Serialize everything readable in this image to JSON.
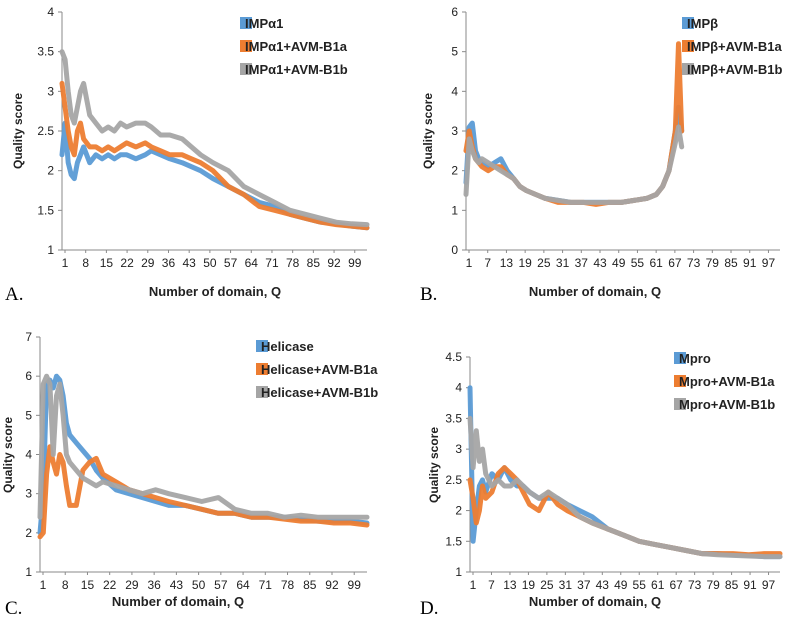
{
  "colors": {
    "series1": "#5B9BD5",
    "series2": "#ED7D31",
    "series3": "#A5A5A5"
  },
  "chart_data": [
    {
      "type": "line",
      "panel_label": "A.",
      "xlabel": "Number of domain, Q",
      "ylabel": "Quality score",
      "ylim": [
        1,
        4
      ],
      "yticks": [
        "1",
        "1.5",
        "2",
        "2.5",
        "3",
        "3.5",
        "4"
      ],
      "xticks": [
        "1",
        "8",
        "15",
        "22",
        "29",
        "36",
        "43",
        "50",
        "57",
        "64",
        "71",
        "78",
        "85",
        "92",
        "99"
      ],
      "xlim": [
        1,
        100
      ],
      "series": [
        {
          "name": "IMPα1",
          "x": [
            1,
            2,
            3,
            4,
            5,
            6,
            7,
            8,
            10,
            12,
            14,
            16,
            18,
            20,
            22,
            25,
            28,
            30,
            33,
            36,
            40,
            43,
            46,
            50,
            55,
            60,
            65,
            70,
            75,
            80,
            85,
            90,
            95,
            100
          ],
          "values": [
            2.2,
            2.6,
            2.1,
            1.95,
            1.9,
            2.1,
            2.2,
            2.3,
            2.1,
            2.2,
            2.15,
            2.2,
            2.15,
            2.2,
            2.2,
            2.15,
            2.2,
            2.25,
            2.2,
            2.15,
            2.1,
            2.05,
            2.0,
            1.9,
            1.8,
            1.7,
            1.6,
            1.55,
            1.45,
            1.4,
            1.35,
            1.33,
            1.3,
            1.28
          ]
        },
        {
          "name": "IMPα1+AVM-B1a",
          "x": [
            1,
            2,
            3,
            4,
            5,
            6,
            7,
            8,
            10,
            12,
            14,
            16,
            18,
            20,
            22,
            25,
            28,
            30,
            33,
            36,
            40,
            43,
            46,
            50,
            55,
            60,
            65,
            70,
            75,
            80,
            85,
            90,
            95,
            100
          ],
          "values": [
            3.1,
            2.8,
            2.5,
            2.3,
            2.2,
            2.5,
            2.6,
            2.4,
            2.3,
            2.3,
            2.25,
            2.3,
            2.25,
            2.3,
            2.35,
            2.3,
            2.35,
            2.3,
            2.25,
            2.2,
            2.2,
            2.15,
            2.1,
            2.0,
            1.8,
            1.7,
            1.55,
            1.5,
            1.45,
            1.4,
            1.35,
            1.32,
            1.3,
            1.28
          ]
        },
        {
          "name": "IMPα1+AVM-B1b",
          "x": [
            1,
            2,
            3,
            4,
            5,
            6,
            7,
            8,
            10,
            12,
            14,
            16,
            18,
            20,
            22,
            25,
            28,
            30,
            33,
            36,
            40,
            43,
            46,
            50,
            55,
            60,
            65,
            70,
            75,
            80,
            85,
            90,
            95,
            100
          ],
          "values": [
            3.5,
            3.4,
            3.0,
            2.7,
            2.6,
            2.8,
            3.0,
            3.1,
            2.7,
            2.6,
            2.5,
            2.55,
            2.5,
            2.6,
            2.55,
            2.6,
            2.6,
            2.55,
            2.45,
            2.45,
            2.4,
            2.3,
            2.2,
            2.1,
            2.0,
            1.8,
            1.7,
            1.6,
            1.5,
            1.45,
            1.4,
            1.35,
            1.33,
            1.32
          ]
        }
      ]
    },
    {
      "type": "line",
      "panel_label": "B.",
      "xlabel": "Number of domain, Q",
      "ylabel": "Quality score",
      "ylim": [
        0,
        6
      ],
      "yticks": [
        "0",
        "1",
        "2",
        "3",
        "4",
        "5",
        "6"
      ],
      "xticks": [
        "1",
        "7",
        "13",
        "19",
        "25",
        "31",
        "37",
        "43",
        "49",
        "55",
        "61",
        "67",
        "73",
        "79",
        "85",
        "91",
        "97"
      ],
      "xlim": [
        1,
        100
      ],
      "series": [
        {
          "name": "IMPβ",
          "x": [
            1,
            2,
            3,
            4,
            5,
            6,
            8,
            10,
            12,
            14,
            16,
            18,
            20,
            23,
            26,
            30,
            34,
            38,
            42,
            46,
            50,
            54,
            58,
            61,
            63,
            65,
            67,
            68,
            69
          ],
          "values": [
            1.7,
            3.1,
            3.2,
            2.5,
            2.3,
            2.2,
            2.1,
            2.2,
            2.3,
            2.0,
            1.8,
            1.6,
            1.5,
            1.4,
            1.3,
            1.25,
            1.2,
            1.2,
            1.2,
            1.2,
            1.2,
            1.25,
            1.3,
            1.4,
            1.6,
            2.0,
            3.0,
            3.6,
            3.0
          ]
        },
        {
          "name": "IMPβ+AVM-B1a",
          "x": [
            1,
            2,
            3,
            4,
            5,
            6,
            8,
            10,
            12,
            14,
            16,
            18,
            20,
            23,
            26,
            30,
            34,
            38,
            42,
            46,
            50,
            54,
            58,
            61,
            63,
            65,
            67,
            68,
            69
          ],
          "values": [
            2.5,
            3.0,
            2.6,
            2.3,
            2.2,
            2.1,
            2.0,
            2.1,
            2.1,
            1.9,
            1.8,
            1.6,
            1.5,
            1.4,
            1.3,
            1.2,
            1.2,
            1.2,
            1.15,
            1.2,
            1.2,
            1.25,
            1.3,
            1.4,
            1.6,
            2.0,
            3.0,
            5.2,
            3.0
          ]
        },
        {
          "name": "IMPβ+AVM-B1b",
          "x": [
            1,
            2,
            3,
            4,
            5,
            6,
            8,
            10,
            12,
            14,
            16,
            18,
            20,
            23,
            26,
            30,
            34,
            38,
            42,
            46,
            50,
            54,
            58,
            61,
            63,
            65,
            67,
            68,
            69
          ],
          "values": [
            1.4,
            2.8,
            2.5,
            2.3,
            2.2,
            2.3,
            2.2,
            2.1,
            2.0,
            1.9,
            1.8,
            1.6,
            1.5,
            1.4,
            1.3,
            1.25,
            1.2,
            1.2,
            1.2,
            1.2,
            1.2,
            1.25,
            1.3,
            1.4,
            1.6,
            2.0,
            2.7,
            3.1,
            2.6
          ]
        }
      ]
    },
    {
      "type": "line",
      "panel_label": "C.",
      "xlabel": "Number of domain, Q",
      "ylabel": "Quality score",
      "ylim": [
        1,
        7
      ],
      "yticks": [
        "1",
        "2",
        "3",
        "4",
        "5",
        "6",
        "7"
      ],
      "xticks": [
        "1",
        "8",
        "15",
        "22",
        "29",
        "36",
        "43",
        "50",
        "57",
        "64",
        "71",
        "78",
        "85",
        "92",
        "99"
      ],
      "xlim": [
        1,
        100
      ],
      "series": [
        {
          "name": "Helicase",
          "x": [
            1,
            2,
            3,
            4,
            5,
            6,
            7,
            8,
            9,
            10,
            12,
            14,
            16,
            18,
            20,
            24,
            28,
            32,
            36,
            40,
            45,
            50,
            55,
            60,
            65,
            70,
            75,
            80,
            85,
            90,
            95,
            100
          ],
          "values": [
            2.0,
            3.0,
            5.8,
            5.9,
            5.7,
            6.0,
            5.9,
            5.5,
            4.8,
            4.5,
            4.3,
            4.1,
            3.9,
            3.6,
            3.4,
            3.1,
            3.0,
            2.9,
            2.8,
            2.7,
            2.7,
            2.6,
            2.5,
            2.5,
            2.4,
            2.4,
            2.4,
            2.35,
            2.3,
            2.3,
            2.3,
            2.25
          ]
        },
        {
          "name": "Helicase+AVM-B1a",
          "x": [
            1,
            2,
            3,
            4,
            5,
            6,
            7,
            8,
            9,
            10,
            12,
            14,
            16,
            18,
            20,
            24,
            28,
            32,
            36,
            40,
            45,
            50,
            55,
            60,
            65,
            70,
            75,
            80,
            85,
            90,
            95,
            100
          ],
          "values": [
            1.9,
            2.0,
            3.5,
            4.2,
            3.8,
            3.5,
            4.0,
            3.8,
            3.2,
            2.7,
            2.7,
            3.6,
            3.8,
            3.9,
            3.5,
            3.3,
            3.1,
            3.0,
            2.9,
            2.8,
            2.7,
            2.6,
            2.5,
            2.5,
            2.4,
            2.4,
            2.35,
            2.3,
            2.3,
            2.25,
            2.25,
            2.2
          ]
        },
        {
          "name": "Helicase+AVM-B1b",
          "x": [
            1,
            2,
            3,
            4,
            5,
            6,
            7,
            8,
            9,
            10,
            12,
            14,
            16,
            18,
            20,
            24,
            28,
            32,
            36,
            40,
            45,
            50,
            55,
            60,
            65,
            70,
            75,
            80,
            85,
            90,
            95,
            100
          ],
          "values": [
            2.4,
            5.8,
            6.0,
            5.8,
            4.0,
            5.5,
            5.8,
            5.0,
            4.0,
            3.8,
            3.6,
            3.4,
            3.3,
            3.2,
            3.3,
            3.2,
            3.1,
            3.0,
            3.1,
            3.0,
            2.9,
            2.8,
            2.9,
            2.6,
            2.5,
            2.5,
            2.4,
            2.45,
            2.4,
            2.4,
            2.4,
            2.4
          ]
        }
      ]
    },
    {
      "type": "line",
      "panel_label": "D.",
      "xlabel": "Number of domain, Q",
      "ylabel": "Quality score",
      "ylim": [
        1,
        4.5
      ],
      "yticks": [
        "1",
        "1.5",
        "2",
        "2.5",
        "3",
        "3.5",
        "4",
        "4.5"
      ],
      "xticks": [
        "1",
        "7",
        "13",
        "19",
        "25",
        "31",
        "37",
        "43",
        "49",
        "55",
        "61",
        "67",
        "73",
        "79",
        "85",
        "91",
        "97"
      ],
      "xlim": [
        1,
        100
      ],
      "series": [
        {
          "name": "Mpro",
          "x": [
            1,
            2,
            3,
            4,
            5,
            6,
            8,
            10,
            12,
            14,
            16,
            18,
            20,
            23,
            26,
            29,
            32,
            36,
            40,
            45,
            50,
            55,
            60,
            65,
            70,
            75,
            80,
            85,
            90,
            95,
            100
          ],
          "values": [
            4.0,
            1.5,
            2.0,
            2.4,
            2.5,
            2.3,
            2.6,
            2.5,
            2.7,
            2.5,
            2.4,
            2.4,
            2.3,
            2.2,
            2.2,
            2.2,
            2.1,
            2.0,
            1.9,
            1.7,
            1.6,
            1.5,
            1.45,
            1.4,
            1.35,
            1.3,
            1.3,
            1.28,
            1.27,
            1.25,
            1.25
          ]
        },
        {
          "name": "Mpro+AVM-B1a",
          "x": [
            1,
            2,
            3,
            4,
            5,
            6,
            8,
            10,
            12,
            14,
            16,
            18,
            20,
            23,
            26,
            29,
            32,
            36,
            40,
            45,
            50,
            55,
            60,
            65,
            70,
            75,
            80,
            85,
            90,
            95,
            100
          ],
          "values": [
            2.5,
            2.2,
            1.8,
            2.0,
            2.4,
            2.2,
            2.3,
            2.6,
            2.7,
            2.6,
            2.5,
            2.3,
            2.1,
            2.0,
            2.3,
            2.1,
            2.0,
            1.9,
            1.8,
            1.7,
            1.6,
            1.5,
            1.45,
            1.4,
            1.35,
            1.3,
            1.3,
            1.3,
            1.28,
            1.3,
            1.3
          ]
        },
        {
          "name": "Mpro+AVM-B1b",
          "x": [
            1,
            2,
            3,
            4,
            5,
            6,
            8,
            10,
            12,
            14,
            16,
            18,
            20,
            23,
            26,
            29,
            32,
            36,
            40,
            45,
            50,
            55,
            60,
            65,
            70,
            75,
            80,
            85,
            90,
            95,
            100
          ],
          "values": [
            3.5,
            2.7,
            3.3,
            2.8,
            3.0,
            2.6,
            2.4,
            2.5,
            2.4,
            2.4,
            2.5,
            2.4,
            2.3,
            2.2,
            2.3,
            2.2,
            2.1,
            1.9,
            1.8,
            1.7,
            1.6,
            1.5,
            1.45,
            1.4,
            1.35,
            1.3,
            1.28,
            1.27,
            1.26,
            1.25,
            1.25
          ]
        }
      ]
    }
  ]
}
